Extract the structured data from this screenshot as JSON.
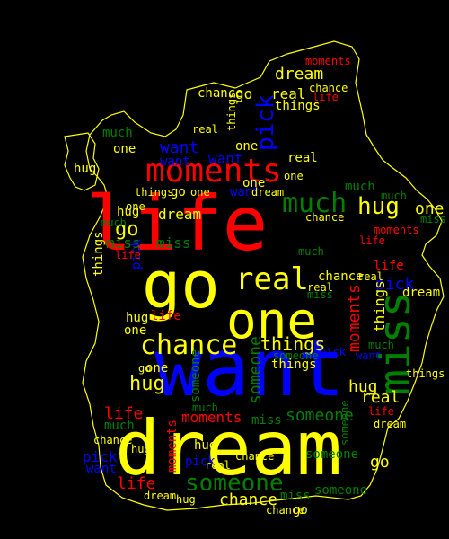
{
  "palette": {
    "background": "#000000",
    "yellow": "#ffff00",
    "red": "#ff0000",
    "blue": "#0000ff",
    "green": "#008000",
    "outline": "#ffff00"
  },
  "words": [
    {
      "text": "want",
      "color": "blue",
      "size": 88,
      "weight": 1.0
    },
    {
      "text": "dream",
      "color": "yellow",
      "size": 84,
      "weight": 0.97
    },
    {
      "text": "life",
      "color": "red",
      "size": 84,
      "weight": 0.97
    },
    {
      "text": "go",
      "color": "yellow",
      "size": 72,
      "weight": 0.85
    },
    {
      "text": "one",
      "color": "yellow",
      "size": 56,
      "weight": 0.7
    },
    {
      "text": "miss",
      "color": "green",
      "size": 48,
      "weight": 0.62
    },
    {
      "text": "moments",
      "color": "red",
      "size": 36,
      "weight": 0.5
    },
    {
      "text": "real",
      "color": "yellow",
      "size": 34,
      "weight": 0.48
    },
    {
      "text": "chance",
      "color": "yellow",
      "size": 30,
      "weight": 0.45
    },
    {
      "text": "much",
      "color": "green",
      "size": 30,
      "weight": 0.45
    },
    {
      "text": "someone",
      "color": "green",
      "size": 26,
      "weight": 0.4
    },
    {
      "text": "hug",
      "color": "yellow",
      "size": 26,
      "weight": 0.4
    },
    {
      "text": "pick",
      "color": "blue",
      "size": 26,
      "weight": 0.4
    },
    {
      "text": "things",
      "color": "yellow",
      "size": 20,
      "weight": 0.34
    }
  ]
}
